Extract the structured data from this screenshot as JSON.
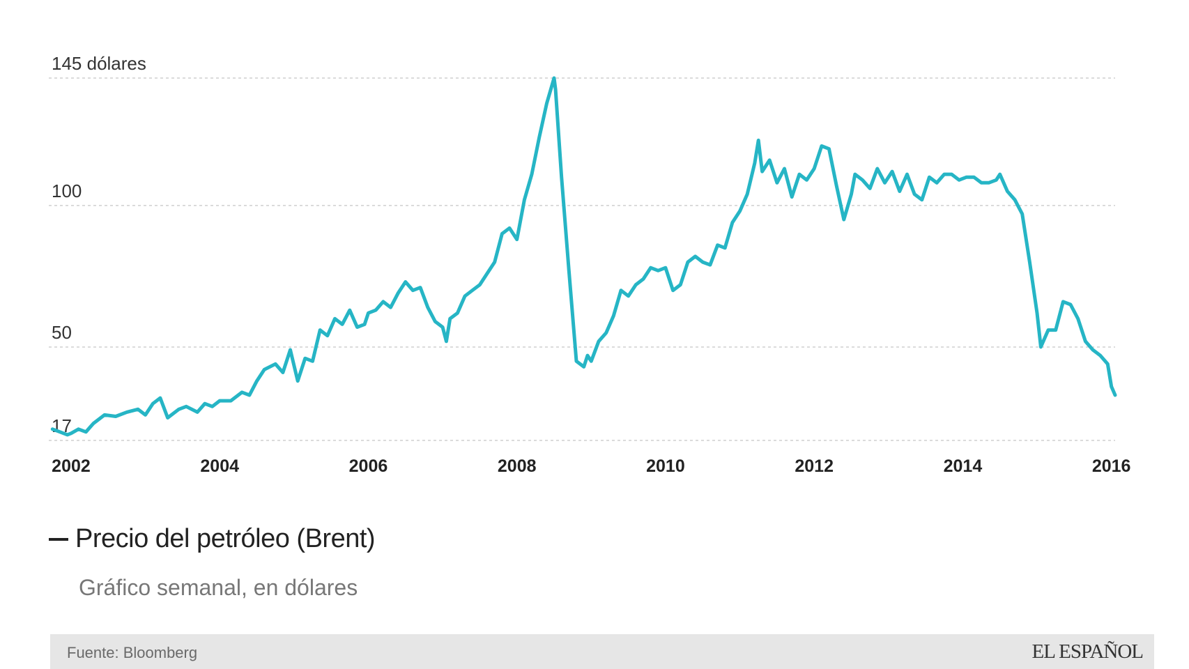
{
  "colors": {
    "series": "#26b5c5",
    "grid": "#cfcfcf",
    "footer_bg": "#e6e6e6"
  },
  "legend": {
    "title": "Precio del petróleo (Brent)",
    "subtitle": "Gráfico semanal, en dólares"
  },
  "footer": {
    "source": "Fuente: Bloomberg",
    "brand": "EL ESPAÑOL"
  },
  "chart_data": {
    "type": "line",
    "title": "",
    "xlabel": "",
    "ylabel": "",
    "ylim": [
      17,
      145
    ],
    "yticks": [
      {
        "value": 145,
        "label": "145 dólares"
      },
      {
        "value": 100,
        "label": "100"
      },
      {
        "value": 50,
        "label": "50"
      },
      {
        "value": 17,
        "label": "17"
      }
    ],
    "xlim": [
      2001.7,
      2016.05
    ],
    "xticks": [
      2002,
      2004,
      2006,
      2008,
      2010,
      2012,
      2014,
      2016
    ],
    "grid": true,
    "series": [
      {
        "name": "Precio del petróleo (Brent)",
        "x": [
          2001.75,
          2001.85,
          2001.95,
          2002.0,
          2002.1,
          2002.2,
          2002.3,
          2002.45,
          2002.6,
          2002.75,
          2002.9,
          2003.0,
          2003.1,
          2003.2,
          2003.3,
          2003.45,
          2003.55,
          2003.7,
          2003.8,
          2003.9,
          2004.0,
          2004.15,
          2004.3,
          2004.4,
          2004.5,
          2004.6,
          2004.75,
          2004.85,
          2004.95,
          2005.05,
          2005.15,
          2005.25,
          2005.35,
          2005.45,
          2005.55,
          2005.65,
          2005.75,
          2005.85,
          2005.95,
          2006.0,
          2006.1,
          2006.2,
          2006.3,
          2006.4,
          2006.5,
          2006.6,
          2006.7,
          2006.8,
          2006.9,
          2007.0,
          2007.05,
          2007.1,
          2007.2,
          2007.3,
          2007.4,
          2007.5,
          2007.6,
          2007.7,
          2007.8,
          2007.9,
          2008.0,
          2008.1,
          2008.2,
          2008.3,
          2008.4,
          2008.5,
          2008.52,
          2008.6,
          2008.7,
          2008.8,
          2008.9,
          2008.95,
          2009.0,
          2009.1,
          2009.2,
          2009.3,
          2009.4,
          2009.5,
          2009.6,
          2009.7,
          2009.8,
          2009.9,
          2010.0,
          2010.1,
          2010.2,
          2010.3,
          2010.4,
          2010.5,
          2010.6,
          2010.7,
          2010.8,
          2010.9,
          2011.0,
          2011.1,
          2011.2,
          2011.25,
          2011.3,
          2011.4,
          2011.5,
          2011.6,
          2011.7,
          2011.8,
          2011.9,
          2012.0,
          2012.1,
          2012.2,
          2012.3,
          2012.4,
          2012.5,
          2012.55,
          2012.65,
          2012.75,
          2012.85,
          2012.95,
          2013.05,
          2013.15,
          2013.25,
          2013.35,
          2013.45,
          2013.55,
          2013.65,
          2013.75,
          2013.85,
          2013.95,
          2014.05,
          2014.15,
          2014.25,
          2014.35,
          2014.45,
          2014.5,
          2014.6,
          2014.7,
          2014.8,
          2014.9,
          2015.0,
          2015.05,
          2015.15,
          2015.25,
          2015.35,
          2015.45,
          2015.55,
          2015.65,
          2015.75,
          2015.85,
          2015.95,
          2016.0,
          2016.05
        ],
        "values": [
          21,
          20,
          19,
          19.5,
          21,
          20,
          23,
          26,
          25.5,
          27,
          28,
          26,
          30,
          32,
          25,
          28,
          29,
          27,
          30,
          29,
          31,
          31,
          34,
          33,
          38,
          42,
          44,
          41,
          49,
          38,
          46,
          45,
          56,
          54,
          60,
          58,
          63,
          57,
          58,
          62,
          63,
          66,
          64,
          69,
          73,
          70,
          71,
          64,
          59,
          57,
          52,
          60,
          62,
          68,
          70,
          72,
          76,
          80,
          90,
          92,
          88,
          102,
          111,
          124,
          136,
          145,
          141,
          110,
          77,
          45,
          43,
          47,
          45,
          52,
          55,
          61,
          70,
          68,
          72,
          74,
          78,
          77,
          78,
          70,
          72,
          80,
          82,
          80,
          79,
          86,
          85,
          94,
          98,
          104,
          115,
          123,
          112,
          116,
          108,
          113,
          103,
          111,
          109,
          113,
          121,
          120,
          107,
          95,
          104,
          111,
          109,
          106,
          113,
          108,
          112,
          105,
          111,
          104,
          102,
          110,
          108,
          111,
          111,
          109,
          110,
          110,
          108,
          108,
          109,
          111,
          105,
          102,
          97,
          80,
          62,
          50,
          56,
          56,
          66,
          65,
          60,
          52,
          49,
          47,
          44,
          36,
          33
        ]
      }
    ]
  }
}
